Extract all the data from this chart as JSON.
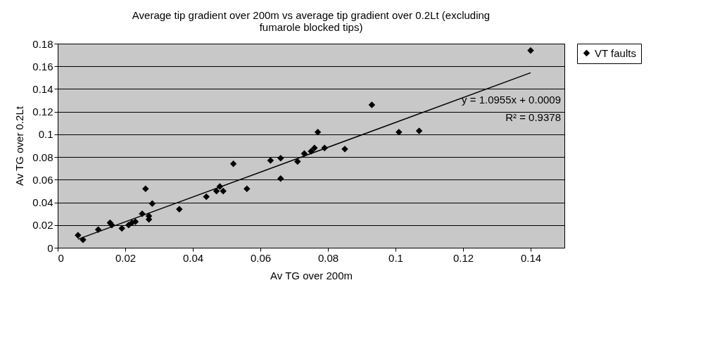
{
  "chart_data": {
    "type": "scatter",
    "title": [
      "Average tip gradient over 200m vs average tip gradient over 0.2Lt (excluding",
      "fumarole blocked tips)"
    ],
    "xlabel": "Av TG over 200m",
    "ylabel": "Av TG over 0.2Lt",
    "annotations": [
      "y = 1.0955x + 0.0009",
      "R² = 0.9378"
    ],
    "series": [
      {
        "name": "VT faults",
        "color": "#000000",
        "marker": "diamond",
        "x": [
          0.006,
          0.0075,
          0.012,
          0.0155,
          0.016,
          0.019,
          0.021,
          0.022,
          0.023,
          0.025,
          0.026,
          0.027,
          0.027,
          0.028,
          0.036,
          0.044,
          0.047,
          0.048,
          0.049,
          0.052,
          0.056,
          0.063,
          0.066,
          0.066,
          0.071,
          0.073,
          0.075,
          0.076,
          0.077,
          0.079,
          0.085,
          0.093,
          0.101,
          0.107,
          0.14
        ],
        "values": [
          0.011,
          0.007,
          0.016,
          0.022,
          0.02,
          0.017,
          0.02,
          0.022,
          0.023,
          0.03,
          0.052,
          0.028,
          0.025,
          0.039,
          0.034,
          0.045,
          0.05,
          0.054,
          0.05,
          0.074,
          0.052,
          0.077,
          0.079,
          0.061,
          0.076,
          0.083,
          0.085,
          0.088,
          0.102,
          0.088,
          0.087,
          0.126,
          0.102,
          0.103,
          0.174
        ]
      },
      {
        "type": "line",
        "color": "#000000",
        "x": [
          0.006,
          0.14
        ],
        "values": [
          0.0075,
          0.1543
        ]
      }
    ],
    "xlim": [
      0,
      0.15
    ],
    "xticks": [
      0,
      0.02,
      0.04,
      0.06,
      0.08,
      0.1,
      0.12,
      0.14
    ],
    "ylim": [
      0,
      0.18
    ],
    "yticks": [
      0,
      0.02,
      0.04,
      0.06,
      0.08,
      0.1,
      0.12,
      0.14,
      0.16,
      0.18
    ],
    "grid": "y",
    "legend": "right"
  }
}
